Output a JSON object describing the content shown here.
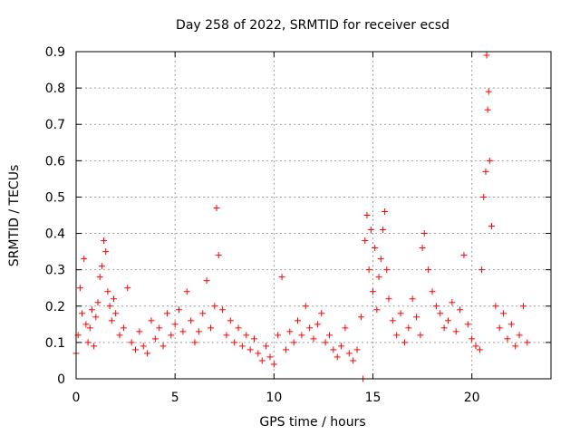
{
  "chart_data": {
    "type": "scatter",
    "title": "Day 258 of 2022, SRMTID for receiver ecsd",
    "xlabel": "GPS time / hours",
    "ylabel": "SRMTID / TECUs",
    "xlim": [
      0,
      24
    ],
    "ylim": [
      0,
      0.9
    ],
    "xticks": [
      0,
      5,
      10,
      15,
      20
    ],
    "xtick_labels": [
      "0",
      "5",
      "10",
      "15",
      "20"
    ],
    "yticks": [
      0,
      0.1,
      0.2,
      0.3,
      0.4,
      0.5,
      0.6,
      0.7,
      0.8,
      0.9
    ],
    "ytick_labels": [
      "0",
      "0.1",
      "0.2",
      "0.3",
      "0.4",
      "0.5",
      "0.6",
      "0.7",
      "0.8",
      "0.9"
    ],
    "grid": true,
    "marker": "+",
    "color": "#ff0000",
    "series": [
      {
        "name": "SRMTID",
        "x": [
          0.0,
          0.1,
          0.2,
          0.3,
          0.4,
          0.5,
          0.6,
          0.7,
          0.8,
          0.9,
          1.0,
          1.1,
          1.2,
          1.3,
          1.4,
          1.5,
          1.6,
          1.7,
          1.8,
          1.9,
          2.0,
          2.2,
          2.4,
          2.6,
          2.8,
          3.0,
          3.2,
          3.4,
          3.6,
          3.8,
          4.0,
          4.2,
          4.4,
          4.6,
          4.8,
          5.0,
          5.2,
          5.4,
          5.6,
          5.8,
          6.0,
          6.2,
          6.4,
          6.6,
          6.8,
          7.0,
          7.1,
          7.2,
          7.4,
          7.6,
          7.8,
          8.0,
          8.2,
          8.4,
          8.6,
          8.8,
          9.0,
          9.2,
          9.4,
          9.6,
          9.8,
          10.0,
          10.2,
          10.4,
          10.6,
          10.8,
          11.0,
          11.2,
          11.4,
          11.6,
          11.8,
          12.0,
          12.2,
          12.4,
          12.6,
          12.8,
          13.0,
          13.2,
          13.4,
          13.6,
          13.8,
          14.0,
          14.2,
          14.4,
          14.5,
          14.6,
          14.7,
          14.8,
          14.9,
          15.0,
          15.1,
          15.2,
          15.3,
          15.4,
          15.5,
          15.6,
          15.7,
          15.8,
          16.0,
          16.2,
          16.4,
          16.6,
          16.8,
          17.0,
          17.2,
          17.4,
          17.5,
          17.6,
          17.8,
          18.0,
          18.2,
          18.4,
          18.6,
          18.8,
          19.0,
          19.2,
          19.4,
          19.6,
          19.8,
          20.0,
          20.2,
          20.4,
          20.5,
          20.6,
          20.7,
          20.75,
          20.8,
          20.85,
          20.9,
          21.0,
          21.2,
          21.4,
          21.6,
          21.8,
          22.0,
          22.2,
          22.4,
          22.6,
          22.8
        ],
        "y": [
          0.07,
          0.12,
          0.25,
          0.18,
          0.33,
          0.15,
          0.1,
          0.14,
          0.19,
          0.09,
          0.17,
          0.21,
          0.28,
          0.31,
          0.38,
          0.35,
          0.24,
          0.2,
          0.16,
          0.22,
          0.18,
          0.12,
          0.14,
          0.25,
          0.1,
          0.08,
          0.13,
          0.09,
          0.07,
          0.16,
          0.11,
          0.14,
          0.09,
          0.18,
          0.12,
          0.15,
          0.19,
          0.13,
          0.24,
          0.16,
          0.1,
          0.13,
          0.18,
          0.27,
          0.14,
          0.2,
          0.47,
          0.34,
          0.19,
          0.12,
          0.16,
          0.1,
          0.14,
          0.09,
          0.12,
          0.08,
          0.11,
          0.07,
          0.05,
          0.09,
          0.06,
          0.04,
          0.12,
          0.28,
          0.08,
          0.13,
          0.1,
          0.16,
          0.12,
          0.2,
          0.14,
          0.11,
          0.15,
          0.18,
          0.1,
          0.12,
          0.08,
          0.06,
          0.09,
          0.14,
          0.07,
          0.05,
          0.08,
          0.17,
          0.0,
          0.38,
          0.45,
          0.3,
          0.41,
          0.24,
          0.36,
          0.19,
          0.28,
          0.33,
          0.41,
          0.46,
          0.3,
          0.22,
          0.16,
          0.12,
          0.18,
          0.1,
          0.14,
          0.22,
          0.17,
          0.12,
          0.36,
          0.4,
          0.3,
          0.24,
          0.2,
          0.18,
          0.14,
          0.16,
          0.21,
          0.13,
          0.19,
          0.34,
          0.15,
          0.11,
          0.09,
          0.08,
          0.3,
          0.5,
          0.57,
          0.89,
          0.74,
          0.79,
          0.6,
          0.42,
          0.2,
          0.14,
          0.18,
          0.11,
          0.15,
          0.09,
          0.12,
          0.2,
          0.1
        ]
      }
    ]
  }
}
